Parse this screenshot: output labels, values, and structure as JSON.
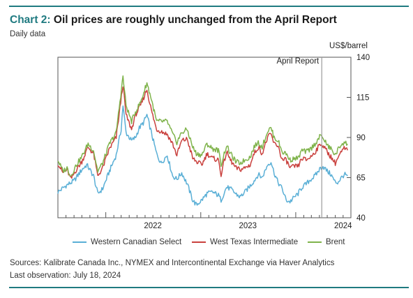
{
  "header": {
    "title_lead": "Chart 2:",
    "title_rest": " Oil prices are roughly unchanged from the April Report",
    "subtitle": "Daily data"
  },
  "chart_data": {
    "type": "line",
    "ylabel": "US$/barrel",
    "ylim": [
      40,
      140
    ],
    "yticks": [
      "140",
      "115",
      "90",
      "65",
      "40"
    ],
    "xticks": [
      "2022",
      "2023",
      "2024"
    ],
    "xrange": [
      "2021-07-01",
      "2024-07-31"
    ],
    "annotation": {
      "label": "April Report",
      "date": "2024-04-10"
    },
    "grid": false,
    "legend_position": "bottom",
    "series": [
      {
        "name": "Western Canadian Select",
        "color": "#5aafd6",
        "points": [
          [
            "2021-07-01",
            56
          ],
          [
            "2021-08-01",
            60
          ],
          [
            "2021-09-01",
            63
          ],
          [
            "2021-10-01",
            70
          ],
          [
            "2021-10-20",
            73
          ],
          [
            "2021-11-15",
            66
          ],
          [
            "2021-12-01",
            55
          ],
          [
            "2021-12-20",
            58
          ],
          [
            "2022-01-15",
            69
          ],
          [
            "2022-02-10",
            79
          ],
          [
            "2022-03-01",
            95
          ],
          [
            "2022-03-08",
            110
          ],
          [
            "2022-03-20",
            93
          ],
          [
            "2022-04-10",
            88
          ],
          [
            "2022-04-25",
            90
          ],
          [
            "2022-05-10",
            96
          ],
          [
            "2022-05-25",
            99
          ],
          [
            "2022-06-08",
            104
          ],
          [
            "2022-06-25",
            93
          ],
          [
            "2022-07-15",
            80
          ],
          [
            "2022-08-01",
            74
          ],
          [
            "2022-08-25",
            79
          ],
          [
            "2022-09-15",
            66
          ],
          [
            "2022-10-01",
            64
          ],
          [
            "2022-10-20",
            68
          ],
          [
            "2022-11-10",
            61
          ],
          [
            "2022-12-01",
            51
          ],
          [
            "2022-12-15",
            48
          ],
          [
            "2023-01-05",
            51
          ],
          [
            "2023-01-25",
            55
          ],
          [
            "2023-02-15",
            56
          ],
          [
            "2023-03-10",
            54
          ],
          [
            "2023-03-20",
            51
          ],
          [
            "2023-04-10",
            59
          ],
          [
            "2023-04-25",
            58
          ],
          [
            "2023-05-15",
            55
          ],
          [
            "2023-06-01",
            53
          ],
          [
            "2023-06-20",
            56
          ],
          [
            "2023-07-10",
            60
          ],
          [
            "2023-07-25",
            63
          ],
          [
            "2023-08-10",
            67
          ],
          [
            "2023-08-25",
            65
          ],
          [
            "2023-09-15",
            73
          ],
          [
            "2023-09-28",
            75
          ],
          [
            "2023-10-10",
            68
          ],
          [
            "2023-10-25",
            62
          ],
          [
            "2023-11-10",
            58
          ],
          [
            "2023-11-25",
            51
          ],
          [
            "2023-12-10",
            50
          ],
          [
            "2023-12-28",
            53
          ],
          [
            "2024-01-10",
            55
          ],
          [
            "2024-01-25",
            59
          ],
          [
            "2024-02-10",
            61
          ],
          [
            "2024-02-28",
            64
          ],
          [
            "2024-03-15",
            66
          ],
          [
            "2024-04-05",
            71
          ],
          [
            "2024-04-15",
            72
          ],
          [
            "2024-05-01",
            69
          ],
          [
            "2024-05-15",
            67
          ],
          [
            "2024-06-01",
            62
          ],
          [
            "2024-06-10",
            62
          ],
          [
            "2024-06-25",
            65
          ],
          [
            "2024-07-05",
            67
          ],
          [
            "2024-07-18",
            66
          ]
        ]
      },
      {
        "name": "West Texas Intermediate",
        "color": "#c9403d",
        "points": [
          [
            "2021-07-01",
            74
          ],
          [
            "2021-07-20",
            68
          ],
          [
            "2021-08-05",
            70
          ],
          [
            "2021-08-20",
            64
          ],
          [
            "2021-09-10",
            70
          ],
          [
            "2021-10-01",
            75
          ],
          [
            "2021-10-25",
            84
          ],
          [
            "2021-11-15",
            80
          ],
          [
            "2021-12-01",
            66
          ],
          [
            "2021-12-20",
            71
          ],
          [
            "2022-01-15",
            83
          ],
          [
            "2022-02-10",
            90
          ],
          [
            "2022-03-08",
            123
          ],
          [
            "2022-03-20",
            104
          ],
          [
            "2022-04-10",
            95
          ],
          [
            "2022-04-25",
            104
          ],
          [
            "2022-05-15",
            110
          ],
          [
            "2022-06-08",
            120
          ],
          [
            "2022-06-25",
            107
          ],
          [
            "2022-07-15",
            95
          ],
          [
            "2022-08-01",
            94
          ],
          [
            "2022-08-25",
            92
          ],
          [
            "2022-09-15",
            86
          ],
          [
            "2022-10-01",
            79
          ],
          [
            "2022-10-20",
            88
          ],
          [
            "2022-11-10",
            89
          ],
          [
            "2022-12-01",
            77
          ],
          [
            "2022-12-15",
            75
          ],
          [
            "2023-01-05",
            73
          ],
          [
            "2023-01-25",
            80
          ],
          [
            "2023-02-15",
            77
          ],
          [
            "2023-03-10",
            76
          ],
          [
            "2023-03-20",
            67
          ],
          [
            "2023-04-10",
            81
          ],
          [
            "2023-04-25",
            76
          ],
          [
            "2023-05-15",
            71
          ],
          [
            "2023-06-01",
            70
          ],
          [
            "2023-06-20",
            71
          ],
          [
            "2023-07-10",
            73
          ],
          [
            "2023-07-25",
            80
          ],
          [
            "2023-08-10",
            84
          ],
          [
            "2023-08-25",
            80
          ],
          [
            "2023-09-15",
            90
          ],
          [
            "2023-09-28",
            92
          ],
          [
            "2023-10-10",
            86
          ],
          [
            "2023-10-25",
            85
          ],
          [
            "2023-11-10",
            76
          ],
          [
            "2023-11-25",
            76
          ],
          [
            "2023-12-10",
            71
          ],
          [
            "2023-12-28",
            72
          ],
          [
            "2024-01-10",
            72
          ],
          [
            "2024-01-25",
            77
          ],
          [
            "2024-02-10",
            76
          ],
          [
            "2024-02-28",
            78
          ],
          [
            "2024-03-15",
            81
          ],
          [
            "2024-04-05",
            86
          ],
          [
            "2024-04-15",
            85
          ],
          [
            "2024-05-01",
            81
          ],
          [
            "2024-05-15",
            78
          ],
          [
            "2024-06-01",
            74
          ],
          [
            "2024-06-10",
            77
          ],
          [
            "2024-06-25",
            81
          ],
          [
            "2024-07-05",
            83
          ],
          [
            "2024-07-18",
            82
          ]
        ]
      },
      {
        "name": "Brent",
        "color": "#7fb34b",
        "points": [
          [
            "2021-07-01",
            76
          ],
          [
            "2021-07-20",
            69
          ],
          [
            "2021-08-05",
            71
          ],
          [
            "2021-08-20",
            66
          ],
          [
            "2021-09-10",
            73
          ],
          [
            "2021-10-01",
            78
          ],
          [
            "2021-10-25",
            86
          ],
          [
            "2021-11-15",
            82
          ],
          [
            "2021-12-01",
            69
          ],
          [
            "2021-12-20",
            74
          ],
          [
            "2022-01-15",
            86
          ],
          [
            "2022-02-10",
            93
          ],
          [
            "2022-03-08",
            128
          ],
          [
            "2022-03-20",
            110
          ],
          [
            "2022-04-10",
            100
          ],
          [
            "2022-04-25",
            106
          ],
          [
            "2022-05-15",
            112
          ],
          [
            "2022-06-08",
            124
          ],
          [
            "2022-06-25",
            114
          ],
          [
            "2022-07-15",
            100
          ],
          [
            "2022-08-01",
            100
          ],
          [
            "2022-08-25",
            100
          ],
          [
            "2022-09-15",
            92
          ],
          [
            "2022-10-01",
            87
          ],
          [
            "2022-10-20",
            93
          ],
          [
            "2022-11-10",
            95
          ],
          [
            "2022-12-01",
            84
          ],
          [
            "2022-12-15",
            80
          ],
          [
            "2023-01-05",
            79
          ],
          [
            "2023-01-25",
            86
          ],
          [
            "2023-02-15",
            83
          ],
          [
            "2023-03-10",
            82
          ],
          [
            "2023-03-20",
            73
          ],
          [
            "2023-04-10",
            85
          ],
          [
            "2023-04-25",
            80
          ],
          [
            "2023-05-15",
            75
          ],
          [
            "2023-06-01",
            74
          ],
          [
            "2023-06-20",
            76
          ],
          [
            "2023-07-10",
            78
          ],
          [
            "2023-07-25",
            84
          ],
          [
            "2023-08-10",
            87
          ],
          [
            "2023-08-25",
            84
          ],
          [
            "2023-09-15",
            94
          ],
          [
            "2023-09-28",
            96
          ],
          [
            "2023-10-10",
            90
          ],
          [
            "2023-10-25",
            88
          ],
          [
            "2023-11-10",
            81
          ],
          [
            "2023-11-25",
            80
          ],
          [
            "2023-12-10",
            76
          ],
          [
            "2023-12-28",
            77
          ],
          [
            "2024-01-10",
            77
          ],
          [
            "2024-01-25",
            82
          ],
          [
            "2024-02-10",
            81
          ],
          [
            "2024-02-28",
            83
          ],
          [
            "2024-03-15",
            86
          ],
          [
            "2024-04-05",
            91
          ],
          [
            "2024-04-15",
            90
          ],
          [
            "2024-05-01",
            85
          ],
          [
            "2024-05-15",
            83
          ],
          [
            "2024-06-01",
            79
          ],
          [
            "2024-06-10",
            82
          ],
          [
            "2024-06-25",
            86
          ],
          [
            "2024-07-05",
            87
          ],
          [
            "2024-07-18",
            86
          ]
        ]
      }
    ]
  },
  "footer": {
    "sources": "Sources: Kalibrate Canada Inc., NYMEX and Intercontinental Exchange via Haver Analytics",
    "last_observation": "Last observation: July 18, 2024"
  }
}
